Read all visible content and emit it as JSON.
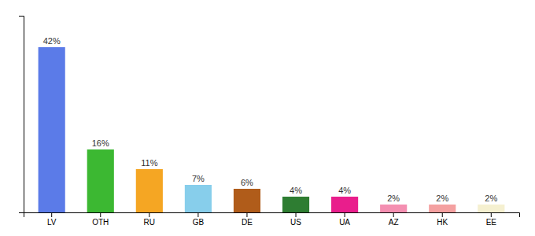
{
  "chart_data": {
    "type": "bar",
    "categories": [
      "LV",
      "OTH",
      "RU",
      "GB",
      "DE",
      "US",
      "UA",
      "AZ",
      "HK",
      "EE"
    ],
    "values": [
      42,
      16,
      11,
      7,
      6,
      4,
      4,
      2,
      2,
      2
    ],
    "value_labels": [
      "42%",
      "16%",
      "11%",
      "7%",
      "6%",
      "4%",
      "4%",
      "2%",
      "2%",
      "2%"
    ],
    "data_labels": true,
    "colors": [
      "#5b7be8",
      "#3cb832",
      "#f5a623",
      "#87ceeb",
      "#b05c1a",
      "#2e7d32",
      "#e91e8c",
      "#f48fb1",
      "#f4a0a0",
      "#f5f0d0"
    ],
    "ylim": [
      0,
      50
    ],
    "yticks": [],
    "tick_labels": "x"
  }
}
